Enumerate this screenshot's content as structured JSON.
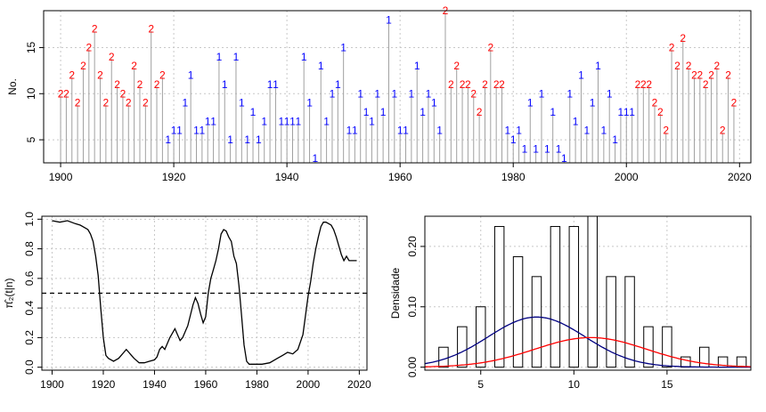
{
  "chart_data": [
    {
      "type": "scatter",
      "name": "regime-series",
      "ylabel": "No.",
      "x_ticks": [
        1900,
        1920,
        1940,
        1960,
        1980,
        2000,
        2020
      ],
      "y_ticks": [
        5,
        10,
        15
      ],
      "xlim": [
        1897,
        2022
      ],
      "ylim": [
        2.5,
        19
      ],
      "years": [
        1900,
        1901,
        1902,
        1903,
        1904,
        1905,
        1906,
        1907,
        1908,
        1909,
        1910,
        1911,
        1912,
        1913,
        1914,
        1915,
        1916,
        1917,
        1918,
        1919,
        1920,
        1921,
        1922,
        1923,
        1924,
        1925,
        1926,
        1927,
        1928,
        1929,
        1930,
        1931,
        1932,
        1933,
        1934,
        1935,
        1936,
        1937,
        1938,
        1939,
        1940,
        1941,
        1942,
        1943,
        1944,
        1945,
        1946,
        1947,
        1948,
        1949,
        1950,
        1951,
        1952,
        1953,
        1954,
        1955,
        1956,
        1957,
        1958,
        1959,
        1960,
        1961,
        1962,
        1963,
        1964,
        1965,
        1966,
        1967,
        1968,
        1969,
        1970,
        1971,
        1972,
        1973,
        1974,
        1975,
        1976,
        1977,
        1978,
        1979,
        1980,
        1981,
        1982,
        1983,
        1984,
        1985,
        1986,
        1987,
        1988,
        1989,
        1990,
        1991,
        1992,
        1993,
        1994,
        1995,
        1996,
        1997,
        1998,
        1999,
        2000,
        2001,
        2002,
        2003,
        2004,
        2005,
        2006,
        2007,
        2008,
        2009,
        2010,
        2011,
        2012,
        2013,
        2014,
        2015,
        2016,
        2017,
        2018,
        2019
      ],
      "counts": [
        10,
        10,
        12,
        9,
        13,
        15,
        17,
        12,
        9,
        14,
        11,
        10,
        9,
        13,
        11,
        9,
        17,
        11,
        12,
        5,
        6,
        6,
        9,
        12,
        6,
        6,
        7,
        7,
        14,
        11,
        5,
        14,
        9,
        5,
        8,
        5,
        7,
        11,
        11,
        7,
        7,
        7,
        7,
        14,
        9,
        3,
        13,
        7,
        10,
        11,
        15,
        6,
        6,
        10,
        8,
        7,
        10,
        8,
        18,
        10,
        6,
        6,
        10,
        13,
        8,
        10,
        9,
        6,
        19,
        11,
        13,
        11,
        11,
        10,
        8,
        11,
        15,
        11,
        11,
        6,
        5,
        6,
        4,
        9,
        4,
        10,
        4,
        8,
        4,
        3,
        10,
        7,
        12,
        6,
        9,
        13,
        6,
        10,
        5,
        8,
        8,
        8,
        11,
        11,
        11,
        9,
        8,
        6,
        15,
        13,
        16,
        13,
        12,
        12,
        11,
        12,
        13,
        6,
        12,
        9
      ],
      "regimes": [
        2,
        2,
        2,
        2,
        2,
        2,
        2,
        2,
        2,
        2,
        2,
        2,
        2,
        2,
        2,
        2,
        2,
        2,
        2,
        1,
        1,
        1,
        1,
        1,
        1,
        1,
        1,
        1,
        1,
        1,
        1,
        1,
        1,
        1,
        1,
        1,
        1,
        1,
        1,
        1,
        1,
        1,
        1,
        1,
        1,
        1,
        1,
        1,
        1,
        1,
        1,
        1,
        1,
        1,
        1,
        1,
        1,
        1,
        1,
        1,
        1,
        1,
        1,
        1,
        1,
        1,
        1,
        1,
        2,
        2,
        2,
        2,
        2,
        2,
        2,
        2,
        2,
        2,
        2,
        1,
        1,
        1,
        1,
        1,
        1,
        1,
        1,
        1,
        1,
        1,
        1,
        1,
        1,
        1,
        1,
        1,
        1,
        1,
        1,
        1,
        1,
        1,
        2,
        2,
        2,
        2,
        2,
        2,
        2,
        2,
        2,
        2,
        2,
        2,
        2,
        2,
        2,
        2,
        2,
        2
      ],
      "marker_labels": {
        "1": "1",
        "2": "2"
      },
      "colors": {
        "regime1": "#0000ff",
        "regime2": "#ff0000",
        "stem": "#a0a0a0"
      }
    },
    {
      "type": "line",
      "name": "posterior-probability",
      "ylabel": "π̂₂(t|n)",
      "x_ticks": [
        1900,
        1920,
        1940,
        1960,
        1980,
        2000,
        2020
      ],
      "y_ticks": [
        "0.0",
        "0.2",
        "0.4",
        "0.6",
        "0.8",
        "1.0"
      ],
      "xlim": [
        1896,
        2023
      ],
      "ylim": [
        -0.02,
        1.02
      ],
      "threshold": 0.5,
      "x": [
        1900,
        1903,
        1906,
        1909,
        1911,
        1913,
        1914,
        1915,
        1916,
        1917,
        1918,
        1919,
        1920,
        1921,
        1922,
        1924,
        1926,
        1928,
        1929,
        1930,
        1931,
        1932,
        1934,
        1936,
        1938,
        1940,
        1941,
        1942,
        1943,
        1944,
        1945,
        1946,
        1948,
        1949,
        1950,
        1951,
        1952,
        1953,
        1954,
        1955,
        1956,
        1957,
        1958,
        1959,
        1960,
        1961,
        1962,
        1963,
        1964,
        1965,
        1966,
        1967,
        1968,
        1969,
        1970,
        1971,
        1972,
        1973,
        1974,
        1975,
        1976,
        1977,
        1978,
        1979,
        1980,
        1982,
        1985,
        1988,
        1990,
        1992,
        1994,
        1996,
        1998,
        1999,
        2000,
        2001,
        2002,
        2003,
        2004,
        2005,
        2006,
        2007,
        2008,
        2009,
        2010,
        2011,
        2012,
        2013,
        2014,
        2015,
        2016,
        2017,
        2018,
        2019
      ],
      "y": [
        0.99,
        0.98,
        0.99,
        0.97,
        0.96,
        0.94,
        0.93,
        0.9,
        0.85,
        0.75,
        0.62,
        0.4,
        0.2,
        0.08,
        0.06,
        0.04,
        0.06,
        0.1,
        0.12,
        0.1,
        0.08,
        0.06,
        0.03,
        0.03,
        0.04,
        0.05,
        0.07,
        0.12,
        0.14,
        0.12,
        0.16,
        0.2,
        0.26,
        0.22,
        0.18,
        0.2,
        0.24,
        0.28,
        0.35,
        0.42,
        0.47,
        0.43,
        0.36,
        0.3,
        0.34,
        0.5,
        0.6,
        0.66,
        0.72,
        0.8,
        0.9,
        0.93,
        0.92,
        0.88,
        0.85,
        0.75,
        0.7,
        0.55,
        0.35,
        0.15,
        0.04,
        0.02,
        0.02,
        0.02,
        0.02,
        0.02,
        0.03,
        0.06,
        0.08,
        0.1,
        0.09,
        0.12,
        0.22,
        0.35,
        0.48,
        0.58,
        0.7,
        0.8,
        0.88,
        0.95,
        0.98,
        0.98,
        0.97,
        0.96,
        0.93,
        0.88,
        0.82,
        0.76,
        0.72,
        0.75,
        0.72,
        0.72,
        0.72,
        0.72
      ],
      "colors": {
        "line": "#000000",
        "threshold": "#000000"
      }
    },
    {
      "type": "bar",
      "name": "density-histogram",
      "ylabel": "Densidade",
      "x_ticks": [
        5,
        10,
        15
      ],
      "y_ticks": [
        "0.00",
        "0.10",
        "0.20"
      ],
      "xlim": [
        2,
        19.5
      ],
      "ylim": [
        -0.005,
        0.25
      ],
      "bin_width": 0.5,
      "bins": [
        3,
        4,
        5,
        6,
        7,
        8,
        9,
        10,
        11,
        12,
        13,
        14,
        15,
        16,
        17,
        18,
        19
      ],
      "values": [
        0.033,
        0.067,
        0.1,
        0.233,
        0.183,
        0.15,
        0.233,
        0.233,
        0.25,
        0.15,
        0.15,
        0.067,
        0.067,
        0.017,
        0.033,
        0.017,
        0.017
      ],
      "curves": [
        {
          "name": "regime1",
          "color": "#000080",
          "mean": 8.0,
          "sd": 2.6,
          "scale": 0.083
        },
        {
          "name": "regime2",
          "color": "#ff0000",
          "mean": 10.9,
          "sd": 3.0,
          "scale": 0.049
        }
      ]
    }
  ]
}
